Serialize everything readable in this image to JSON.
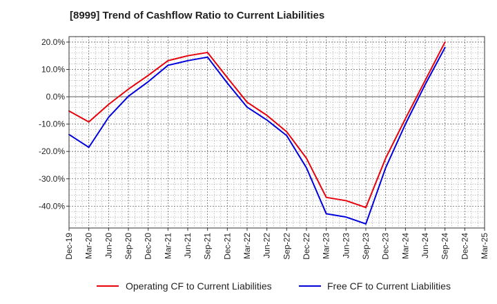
{
  "chart_data": {
    "type": "line",
    "title": "[8999]  Trend of Cashflow Ratio to Current Liabilities",
    "xlabel": "",
    "ylabel": "",
    "categories": [
      "Dec-19",
      "Mar-20",
      "Jun-20",
      "Sep-20",
      "Dec-20",
      "Mar-21",
      "Jun-21",
      "Sep-21",
      "Dec-21",
      "Mar-22",
      "Jun-22",
      "Sep-22",
      "Dec-22",
      "Mar-23",
      "Jun-23",
      "Sep-23",
      "Dec-23",
      "Mar-24",
      "Jun-24",
      "Sep-24",
      "Dec-24",
      "Mar-25"
    ],
    "ylim": [
      -48,
      22
    ],
    "yticks": [
      20,
      10,
      0,
      -10,
      -20,
      -30,
      -40
    ],
    "ytick_labels": [
      "20.0%",
      "10.0%",
      "0.0%",
      "-10.0%",
      "-20.0%",
      "-30.0%",
      "-40.0%"
    ],
    "grid": true,
    "legend_position": "bottom",
    "series": [
      {
        "name": "Operating CF to Current Liabilities",
        "color": "#e8000b",
        "values": [
          -5.2,
          -9.2,
          -2.8,
          2.8,
          7.8,
          13.2,
          15.0,
          16.2,
          7.0,
          -2.0,
          -6.8,
          -12.8,
          -22.5,
          -36.8,
          -38.0,
          -40.5,
          -22.5,
          -8.0,
          6.0,
          20.0,
          null,
          null
        ]
      },
      {
        "name": "Free CF to Current Liabilities",
        "color": "#0000dd",
        "values": [
          -13.8,
          -18.5,
          -7.5,
          0.2,
          5.5,
          11.5,
          13.2,
          14.5,
          5.0,
          -3.8,
          -8.5,
          -14.2,
          -26.0,
          -42.8,
          -44.0,
          -46.5,
          -26.0,
          -10.0,
          4.5,
          18.0,
          null,
          null
        ]
      }
    ]
  }
}
